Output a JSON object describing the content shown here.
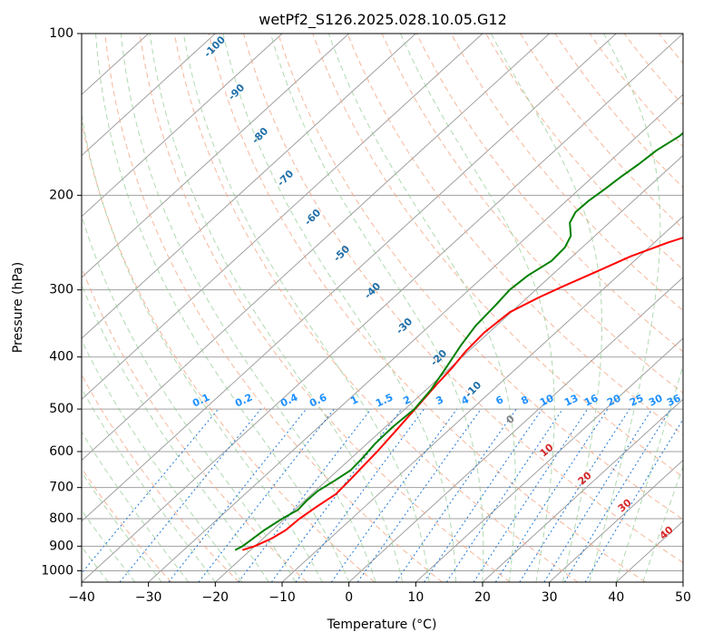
{
  "chart_data": {
    "type": "line",
    "title": "wetPf2_S126.2025.028.10.05.G12",
    "xlabel": "Temperature (°C)",
    "ylabel": "Pressure (hPa)",
    "xlim": [
      -40,
      50
    ],
    "ylim": [
      1050,
      100
    ],
    "yscale": "log",
    "x_ticks": [
      -40,
      -30,
      -20,
      -10,
      0,
      10,
      20,
      30,
      40,
      50
    ],
    "y_ticks": [
      100,
      200,
      300,
      400,
      500,
      600,
      700,
      800,
      900,
      1000
    ],
    "grid": true,
    "skew": 45,
    "series": [
      {
        "color": "#ff0000",
        "points": [
          [
            -21.2,
            915
          ],
          [
            -20,
            900
          ],
          [
            -18.7,
            870
          ],
          [
            -18,
            840
          ],
          [
            -17.8,
            800
          ],
          [
            -17.2,
            760
          ],
          [
            -16.4,
            720
          ],
          [
            -16.6,
            680
          ],
          [
            -16.9,
            640
          ],
          [
            -17.2,
            600
          ],
          [
            -17.8,
            550
          ],
          [
            -18.5,
            500
          ],
          [
            -19.3,
            450
          ],
          [
            -19.7,
            420
          ],
          [
            -20.4,
            390
          ],
          [
            -20.7,
            360
          ],
          [
            -20.2,
            330
          ],
          [
            -18.3,
            310
          ],
          [
            -16.4,
            295
          ],
          [
            -13.8,
            277
          ],
          [
            -11.3,
            260
          ],
          [
            -8,
            245
          ],
          [
            -3,
            228
          ],
          [
            -1,
            220
          ],
          [
            0.3,
            210
          ],
          [
            1.8,
            200
          ],
          [
            3.3,
            190
          ],
          [
            5,
            180
          ],
          [
            6.8,
            170
          ],
          [
            8,
            160
          ],
          [
            10,
            150
          ],
          [
            11.6,
            140
          ],
          [
            13.8,
            130
          ],
          [
            16,
            120
          ],
          [
            18.9,
            110
          ],
          [
            20.5,
            104
          ],
          [
            22,
            100
          ]
        ]
      },
      {
        "color": "#008000",
        "points": [
          [
            -22.3,
            915
          ],
          [
            -21.8,
            900
          ],
          [
            -21.5,
            870
          ],
          [
            -21.2,
            840
          ],
          [
            -20.4,
            800
          ],
          [
            -19.5,
            770
          ],
          [
            -19.7,
            740
          ],
          [
            -19.6,
            710
          ],
          [
            -18.8,
            680
          ],
          [
            -18.1,
            650
          ],
          [
            -18.3,
            620
          ],
          [
            -18.8,
            580
          ],
          [
            -18.9,
            540
          ],
          [
            -18.6,
            500
          ],
          [
            -19.3,
            460
          ],
          [
            -20.6,
            420
          ],
          [
            -22.1,
            380
          ],
          [
            -23.1,
            350
          ],
          [
            -23.5,
            320
          ],
          [
            -23.9,
            300
          ],
          [
            -23.5,
            282
          ],
          [
            -22.4,
            265
          ],
          [
            -22.6,
            250
          ],
          [
            -23.6,
            238
          ],
          [
            -25.9,
            225
          ],
          [
            -26.8,
            215
          ],
          [
            -26.7,
            205
          ],
          [
            -26.2,
            195
          ],
          [
            -25.8,
            185
          ],
          [
            -25.2,
            175
          ],
          [
            -24.8,
            165
          ],
          [
            -23.7,
            155
          ],
          [
            -23.6,
            145
          ],
          [
            -23.5,
            135
          ],
          [
            -22.4,
            126
          ],
          [
            -21.6,
            120
          ],
          [
            -20.8,
            114
          ],
          [
            -20.2,
            108
          ],
          [
            -19.8,
            104
          ],
          [
            -19.6,
            100
          ]
        ]
      }
    ],
    "dry_adiabat_labels": [
      "-100",
      "-90",
      "-80",
      "-70",
      "-60",
      "-50",
      "-40",
      "-30",
      "-20",
      "-10"
    ],
    "moist_adiabat_labels": [
      "0",
      "10",
      "20",
      "30",
      "40"
    ],
    "mixing_ratio_labels": [
      "0.1",
      "0.2",
      "0.4",
      "0.6",
      "1",
      "1.5",
      "2",
      "3",
      "4",
      "6",
      "8",
      "10",
      "13",
      "16",
      "20",
      "25",
      "30",
      "36"
    ],
    "colors": {
      "temperature": "#ff0000",
      "dewpoint": "#008000",
      "isotherm": "#a0a0a0",
      "dry_adiabat": "#f4a582",
      "moist_adiabat": "#8fc98f",
      "mixing_ratio": "#1f77d4",
      "dry_label": "#1f6fa8",
      "moist_label": "#d62728",
      "mixing_label": "#1e90ff"
    }
  }
}
